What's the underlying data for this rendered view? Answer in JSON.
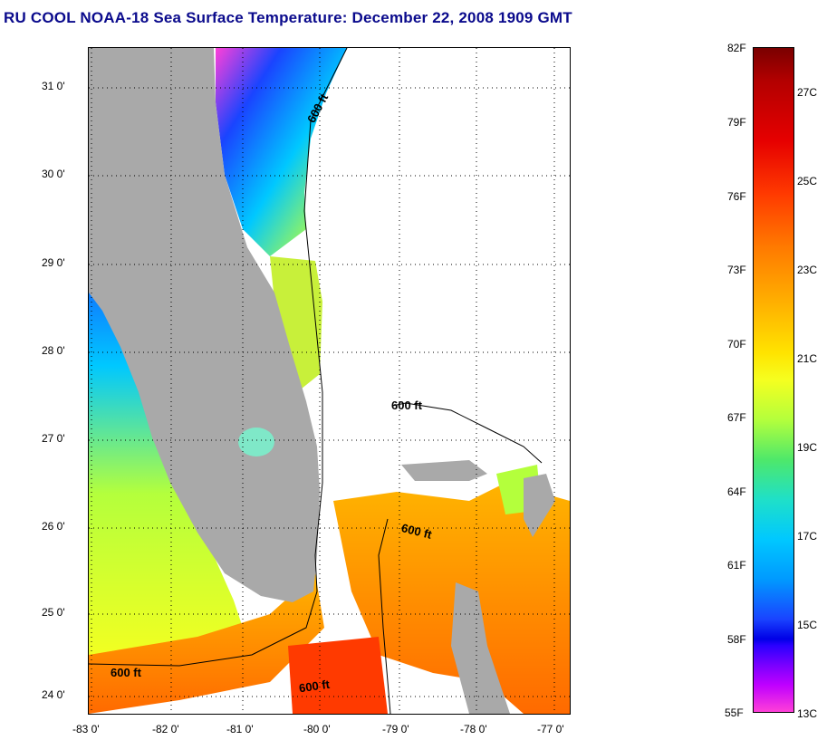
{
  "title": "RU COOL  NOAA-18  Sea Surface Temperature:  December 22, 2008 1909 GMT",
  "map": {
    "lat_labels": [
      "31 0'",
      "30 0'",
      "29 0'",
      "28 0'",
      "27 0'",
      "26 0'",
      "25 0'",
      "24 0'"
    ],
    "lon_labels": [
      "-83 0'",
      "-82 0'",
      "-81 0'",
      "-80 0'",
      "-79 0'",
      "-78 0'",
      "-77 0'"
    ],
    "isobath_label": "600 ft",
    "colors": {
      "land": "#a9a9a9",
      "ocean_missing": "#ffffff",
      "contour": "#000000"
    }
  },
  "colorbar": {
    "fahrenheit_labels": [
      "82F",
      "79F",
      "76F",
      "73F",
      "70F",
      "67F",
      "64F",
      "61F",
      "58F",
      "55F"
    ],
    "celsius_labels": [
      "27C",
      "25C",
      "23C",
      "21C",
      "19C",
      "17C",
      "15C",
      "13C"
    ],
    "range_f": [
      55,
      82
    ],
    "range_c": [
      13,
      28
    ]
  }
}
